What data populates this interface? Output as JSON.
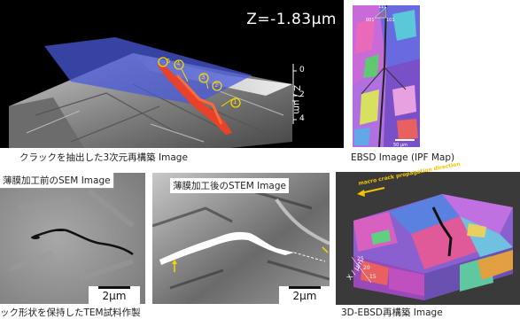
{
  "panel_3d": {
    "z_readout": "Z=-1.83μm",
    "z_axis_label": "Z / μm",
    "z_ticks": [
      "0",
      "2",
      "4"
    ],
    "markers": [
      "1",
      "2",
      "3",
      "4",
      "5"
    ],
    "caption": "クラックを抽出した3次元再構築 Image"
  },
  "panel_ebsd": {
    "legend_top": "111",
    "legend_left": "001",
    "legend_right": "101",
    "scale_text": "50 μm",
    "caption": "EBSD Image (IPF Map)"
  },
  "panel_sem": {
    "title": "薄膜加工前のSEM Image",
    "scale_text": "2μm"
  },
  "panel_stem": {
    "title": "薄膜加工後のSTEM Image",
    "scale_text": "2μm"
  },
  "bottom_caption_left": "ック形状を保持したTEM試料作製",
  "panel_3debsd": {
    "arrow_label": "macro crack propagation direction",
    "x_axis_label": "X / μm",
    "x_ticks": [
      "25",
      "20",
      "15"
    ],
    "caption": "3D-EBSD再構築 Image"
  },
  "colors": {
    "marker_yellow": "#f5d800",
    "crack_red": "#e8432a",
    "plane_blue": "#4a5ad8"
  }
}
